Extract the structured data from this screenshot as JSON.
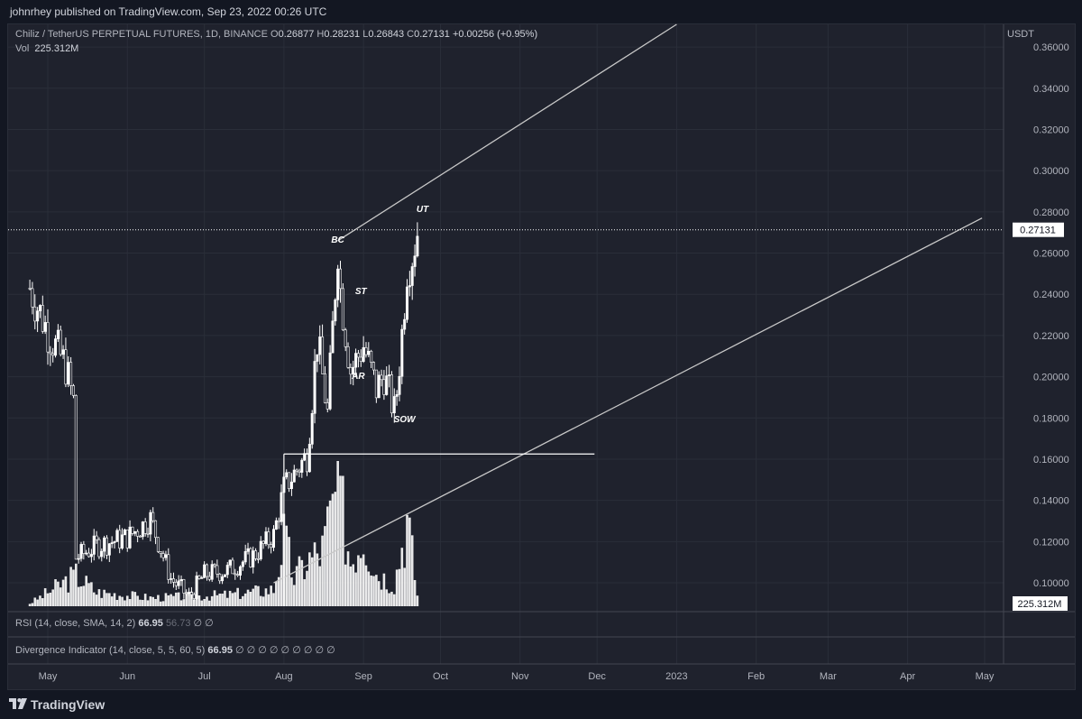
{
  "header": {
    "published": "johnrhey published on TradingView.com, Sep 23, 2022 00:26 UTC"
  },
  "legend": {
    "symbol": "Chiliz / TetherUS PERPETUAL FUTURES, 1D, BINANCE",
    "o_label": "O",
    "o": "0.26877",
    "h_label": "H",
    "h": "0.28231",
    "l_label": "L",
    "l": "0.26843",
    "c_label": "C",
    "c": "0.27131",
    "change": "+0.00256 (+0.95%)",
    "vol_label": "Vol",
    "vol": "225.312M"
  },
  "rsi": {
    "label": "RSI (14, close, SMA, 14, 2)",
    "value": "66.95",
    "sma": "56.73",
    "tail": "∅ ∅"
  },
  "divergence": {
    "label": "Divergence Indicator (14, close, 5, 5, 60, 5)",
    "value": "66.95",
    "tail": "∅ ∅ ∅ ∅ ∅ ∅ ∅ ∅ ∅"
  },
  "brand": {
    "name": "TradingView",
    "logo_icon": "tradingview-logo-icon"
  },
  "colors": {
    "background": "#1f222d",
    "candle": "#ffffff",
    "trendline": "#c8c8c8"
  },
  "chart_data": {
    "type": "candlestick",
    "currency": "USDT",
    "ylim": [
      0.086,
      0.371
    ],
    "yticks": [
      "0.10000",
      "0.12000",
      "0.14000",
      "0.16000",
      "0.18000",
      "0.20000",
      "0.22000",
      "0.24000",
      "0.26000",
      "0.28000",
      "0.30000",
      "0.32000",
      "0.34000",
      "0.36000"
    ],
    "ytick_values": [
      0.1,
      0.12,
      0.14,
      0.16,
      0.18,
      0.2,
      0.22,
      0.24,
      0.26,
      0.28,
      0.3,
      0.32,
      0.34,
      0.36
    ],
    "xticks": [
      "May",
      "Jun",
      "Jul",
      "Aug",
      "Sep",
      "Oct",
      "Nov",
      "Dec",
      "2023",
      "Feb",
      "Mar",
      "Apr",
      "May"
    ],
    "xtick_dates": [
      "2022-05-01",
      "2022-06-01",
      "2022-07-01",
      "2022-08-01",
      "2022-09-01",
      "2022-10-01",
      "2022-11-01",
      "2022-12-01",
      "2023-01-01",
      "2023-02-01",
      "2023-03-01",
      "2023-04-01",
      "2023-05-01"
    ],
    "last_price": "0.27131",
    "last_price_value": 0.27131,
    "last_volume": "225.312M",
    "close_series_dates": [
      "2022-04-24",
      "2022-05-01",
      "2022-05-08",
      "2022-05-11",
      "2022-05-12",
      "2022-05-20",
      "2022-06-01",
      "2022-06-10",
      "2022-06-18",
      "2022-06-25",
      "2022-07-01",
      "2022-07-10",
      "2022-07-20",
      "2022-07-28",
      "2022-08-01",
      "2022-08-05",
      "2022-08-10",
      "2022-08-14",
      "2022-08-18",
      "2022-08-22",
      "2022-08-23",
      "2022-08-27",
      "2022-09-01",
      "2022-09-06",
      "2022-09-09",
      "2022-09-13",
      "2022-09-14",
      "2022-09-16",
      "2022-09-18",
      "2022-09-20",
      "2022-09-22"
    ],
    "close_series_values": [
      0.243,
      0.222,
      0.205,
      0.188,
      0.112,
      0.118,
      0.122,
      0.131,
      0.102,
      0.093,
      0.104,
      0.106,
      0.113,
      0.123,
      0.146,
      0.153,
      0.162,
      0.218,
      0.182,
      0.264,
      0.242,
      0.203,
      0.215,
      0.194,
      0.201,
      0.183,
      0.193,
      0.221,
      0.254,
      0.26,
      0.271
    ],
    "volume_series_dates": [
      "2022-04-24",
      "2022-05-12",
      "2022-05-20",
      "2022-06-10",
      "2022-07-10",
      "2022-07-28",
      "2022-08-01",
      "2022-08-05",
      "2022-08-10",
      "2022-08-16",
      "2022-08-22",
      "2022-08-27",
      "2022-09-01",
      "2022-09-06",
      "2022-09-13",
      "2022-09-18",
      "2022-09-20",
      "2022-09-22"
    ],
    "volume_series_values": [
      0.05,
      0.55,
      0.25,
      0.15,
      0.2,
      0.3,
      1.2,
      0.5,
      0.8,
      1.0,
      2.15,
      0.8,
      1.35,
      0.6,
      0.4,
      1.55,
      0.9,
      0.2
    ],
    "trendlines": [
      {
        "from": [
          "2022-08-22",
          0.266
        ],
        "to": [
          "2023-01-01",
          0.371
        ]
      },
      {
        "from": [
          "2022-07-28",
          0.1
        ],
        "to": [
          "2023-04-30",
          0.277
        ]
      }
    ],
    "horizontal_line": {
      "price": 0.1625,
      "from": "2022-08-01",
      "to": "2022-11-30"
    },
    "annotations": [
      {
        "text": "BC",
        "date": "2022-08-22",
        "price": 0.265
      },
      {
        "text": "ST",
        "date": "2022-08-31",
        "price": 0.24
      },
      {
        "text": "AR",
        "date": "2022-08-30",
        "price": 0.199
      },
      {
        "text": "SOW",
        "date": "2022-09-17",
        "price": 0.178
      },
      {
        "text": "UT",
        "date": "2022-09-24",
        "price": 0.28
      }
    ]
  }
}
